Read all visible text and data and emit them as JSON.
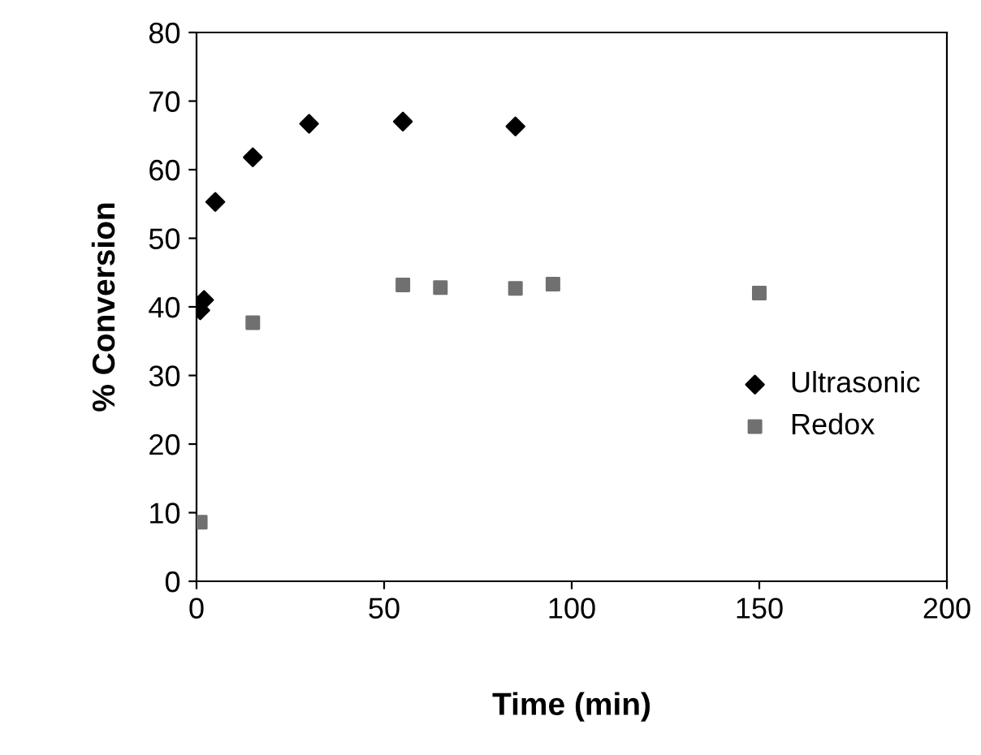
{
  "chart_data": {
    "type": "scatter",
    "xlabel": "Time (min)",
    "ylabel": "% Conversion",
    "xlim": [
      0,
      200
    ],
    "xticks": [
      0,
      50,
      100,
      150,
      200
    ],
    "ylim": [
      0,
      80
    ],
    "yticks": [
      0,
      10,
      20,
      30,
      40,
      50,
      60,
      70,
      80
    ],
    "grid": false,
    "legend": "right",
    "series": [
      {
        "name": "Ultrasonic",
        "color": "#000000",
        "marker": "diamond",
        "x": [
          1,
          2,
          5,
          15,
          30,
          55,
          85
        ],
        "values": [
          39.5,
          41,
          55.3,
          61.8,
          66.7,
          67,
          66.3
        ]
      },
      {
        "name": "Redox",
        "color": "#707070",
        "marker": "square",
        "x": [
          1,
          15,
          55,
          65,
          85,
          95,
          150
        ],
        "values": [
          8.6,
          37.7,
          43.2,
          42.8,
          42.7,
          43.3,
          42
        ]
      }
    ]
  }
}
